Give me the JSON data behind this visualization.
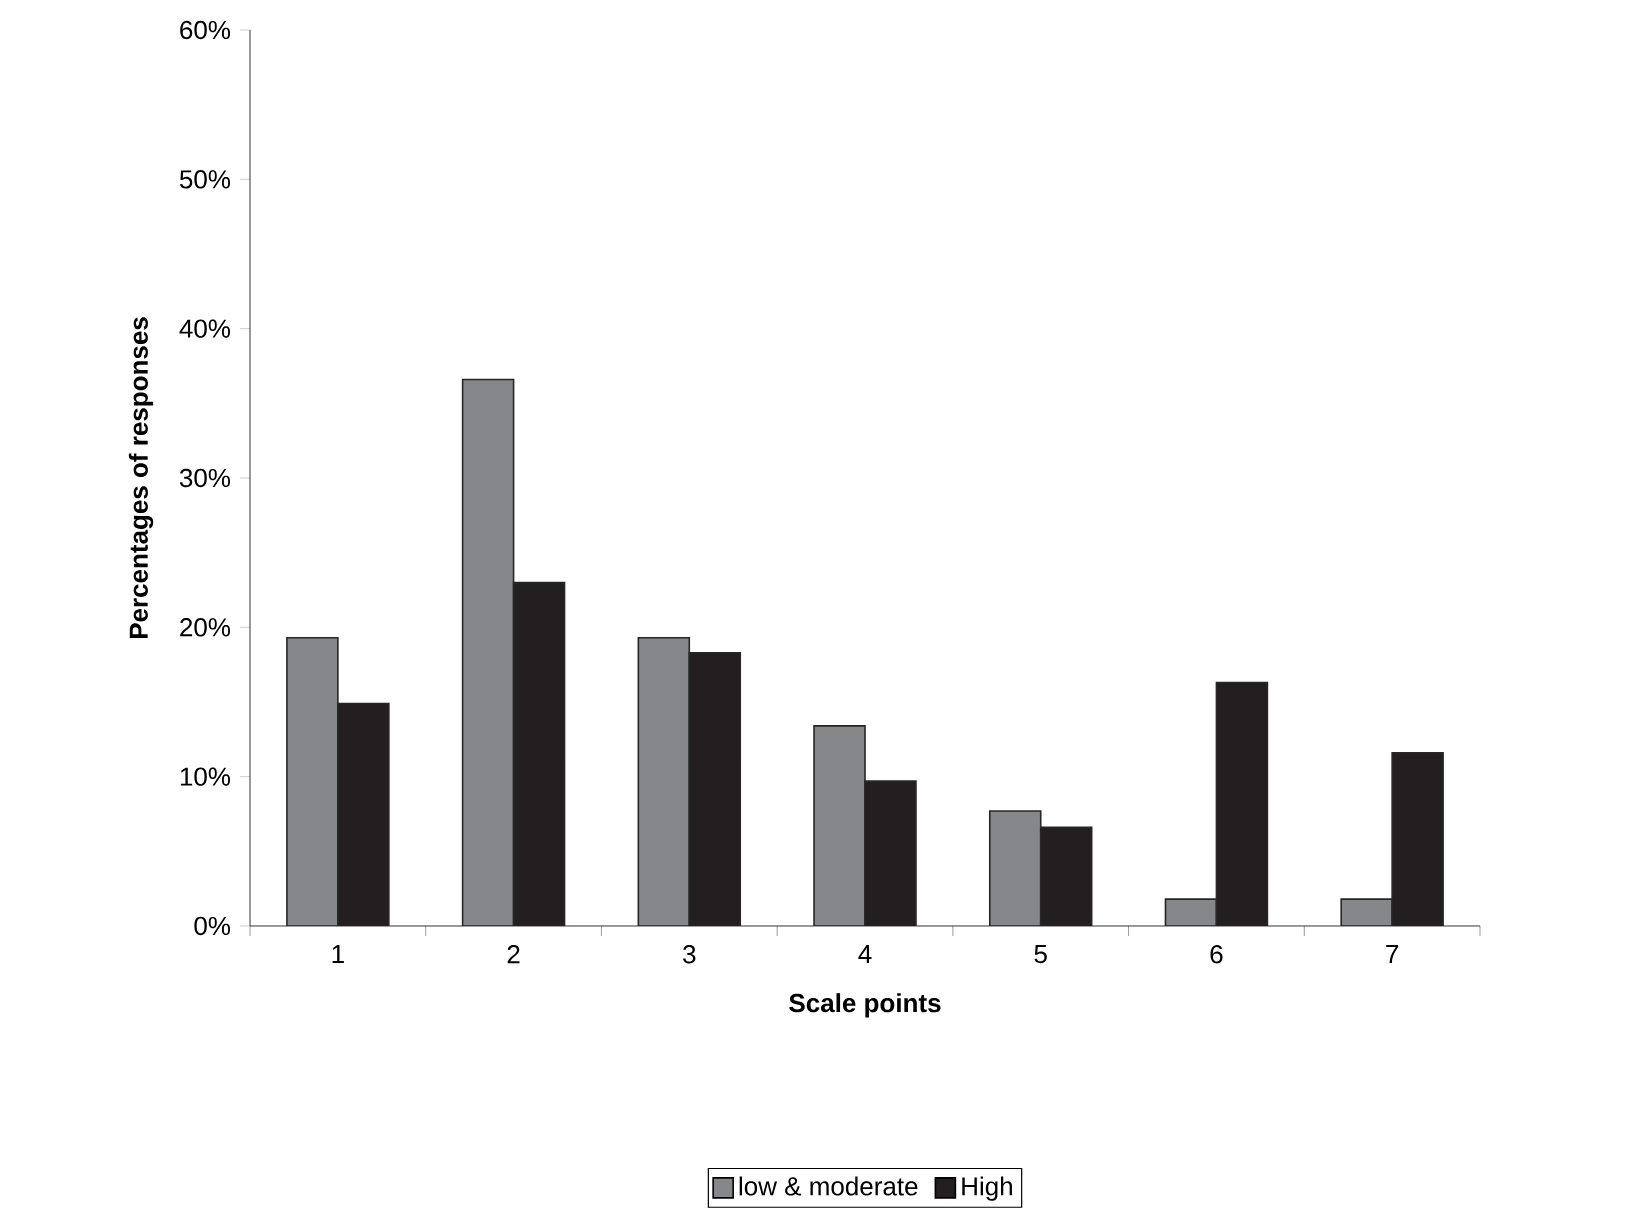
{
  "chart_data": {
    "type": "bar",
    "xlabel": "Scale points",
    "ylabel": "Percentages of responses",
    "categories": [
      "1",
      "2",
      "3",
      "4",
      "5",
      "6",
      "7"
    ],
    "series": [
      {
        "name": "low & moderate",
        "color": "#86878a",
        "values": [
          19.3,
          36.6,
          19.3,
          13.4,
          7.7,
          1.8,
          1.8
        ]
      },
      {
        "name": "High",
        "color": "#231f20",
        "values": [
          14.9,
          23.0,
          18.3,
          9.7,
          6.6,
          16.3,
          11.6
        ]
      }
    ],
    "ylim": [
      0,
      60
    ],
    "yticks": [
      {
        "value": 0,
        "label": "0%"
      },
      {
        "value": 10,
        "label": "10%"
      },
      {
        "value": 20,
        "label": "20%"
      },
      {
        "value": 30,
        "label": "30%"
      },
      {
        "value": 40,
        "label": "40%"
      },
      {
        "value": 50,
        "label": "50%"
      },
      {
        "value": 60,
        "label": "60%"
      }
    ],
    "grid": false,
    "legend": "bottom"
  }
}
